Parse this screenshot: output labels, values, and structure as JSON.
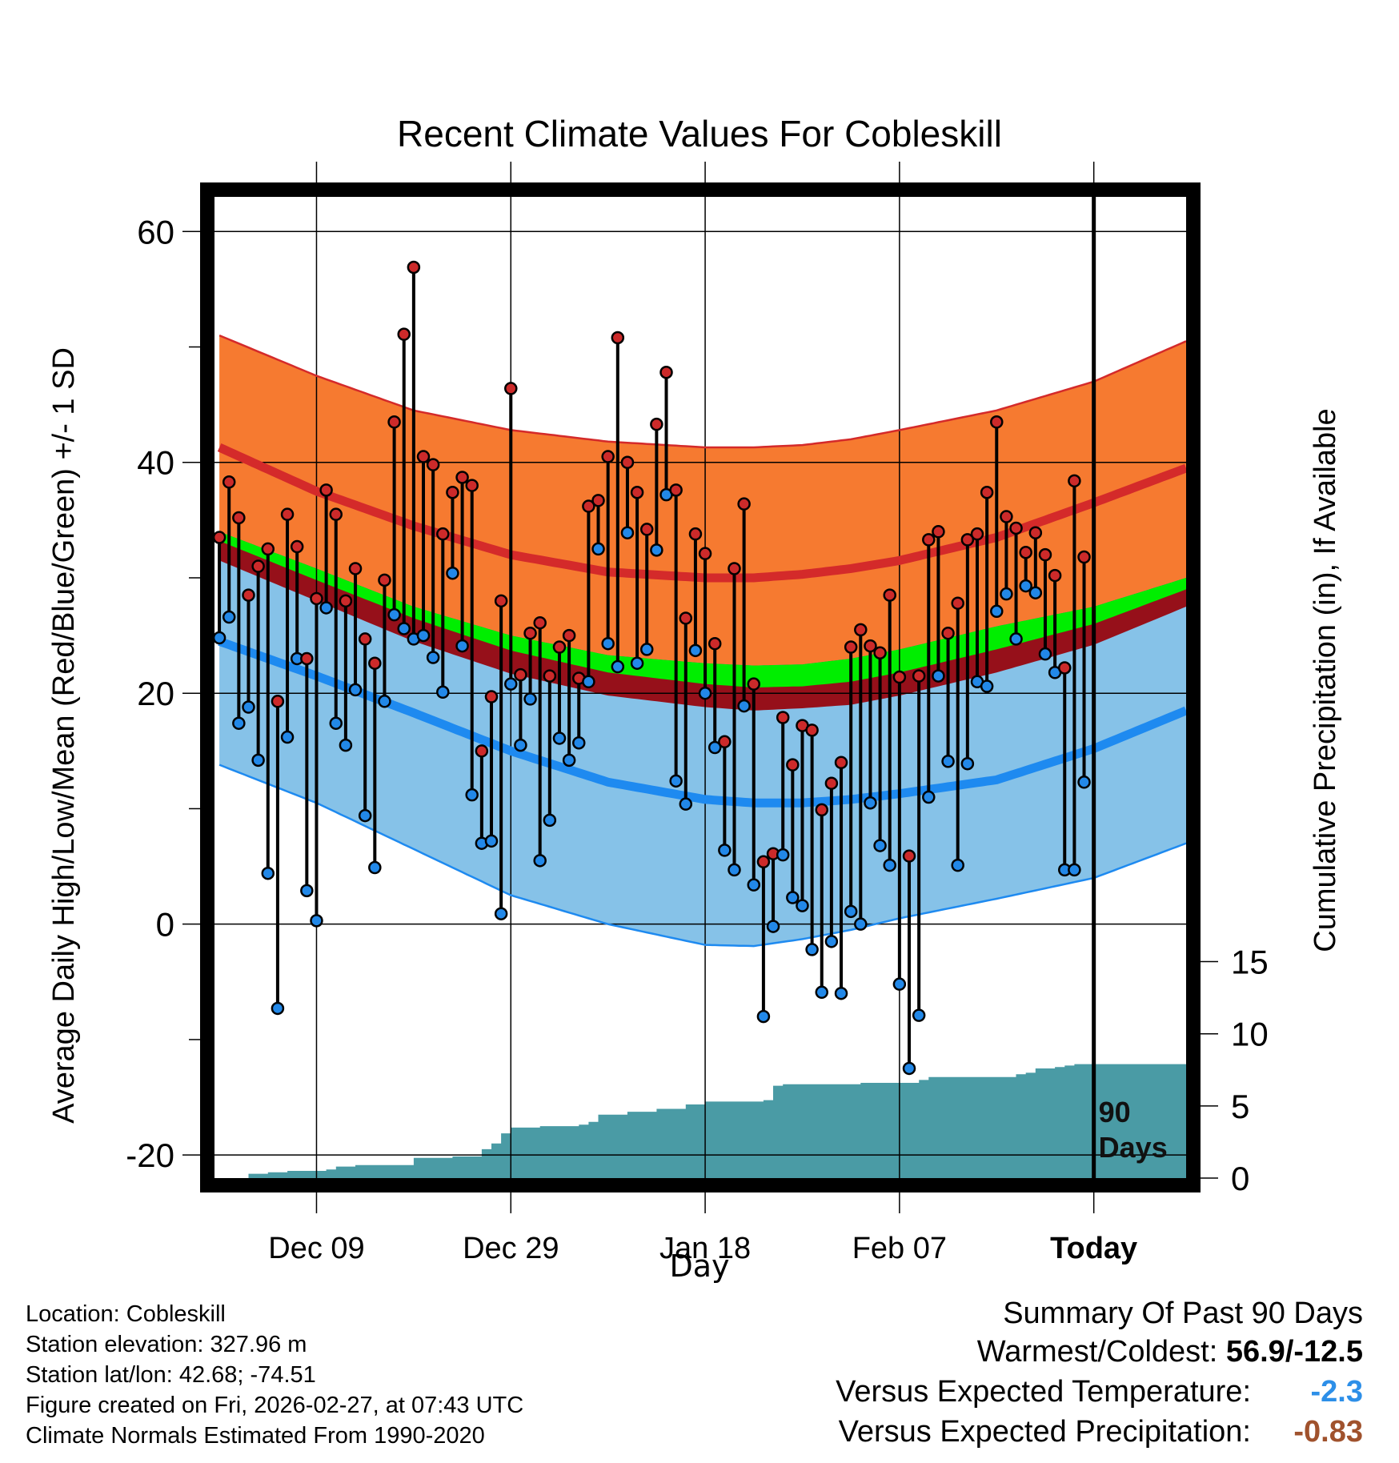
{
  "title": "Recent Climate Values For Cobleskill",
  "chart_data": {
    "type": "scatter",
    "title": "Recent Climate Values For Cobleskill",
    "xlabel": "Day",
    "ylabel_left": "Average Daily High/Low/Mean (Red/Blue/Green) +/- 1 SD",
    "ylabel_right": "Cumulative Precipitation (in), If Available",
    "y_left_range": [
      -22,
      63
    ],
    "y_left_ticks": [
      "60",
      "40",
      "20",
      "0",
      "-20"
    ],
    "y_left_tick_values": [
      60,
      40,
      20,
      0,
      -20
    ],
    "y_right_range": [
      0,
      68
    ],
    "y_right_ticks": [
      "15",
      "10",
      "5",
      "0"
    ],
    "y_right_tick_values": [
      15,
      10,
      5,
      0
    ],
    "x_ticks": [
      "Dec 09",
      "Dec 29",
      "Jan 18",
      "Feb 07",
      "Today"
    ],
    "x_tick_days": [
      10,
      30,
      50,
      70,
      90
    ],
    "x_range": [
      -0.5,
      99.5
    ],
    "today_day": 90,
    "today_label": "90 Days",
    "normals_days": [
      0,
      10,
      20,
      30,
      40,
      50,
      55,
      60,
      65,
      70,
      80,
      90,
      99.5
    ],
    "normal_high": [
      41.3,
      37.5,
      34.5,
      32.0,
      30.5,
      30.0,
      30.0,
      30.3,
      30.8,
      31.5,
      33.5,
      36.5,
      39.5
    ],
    "normal_high_plus_sd": [
      51,
      47.5,
      44.5,
      42.8,
      41.8,
      41.3,
      41.3,
      41.5,
      42.0,
      42.8,
      44.5,
      47.0,
      50.5
    ],
    "normal_low": [
      24.5,
      21.5,
      18.3,
      15.0,
      12.3,
      10.8,
      10.5,
      10.5,
      10.8,
      11.3,
      12.5,
      15.2,
      18.5
    ],
    "normal_low_minus_sd": [
      13.8,
      10.5,
      6.5,
      2.5,
      0,
      -1.8,
      -1.9,
      -1.3,
      -0.5,
      0.5,
      2.2,
      4.0,
      7.0
    ],
    "normal_mean": [
      33.2,
      29.8,
      26.5,
      23.7,
      21.8,
      20.8,
      20.5,
      20.6,
      21.0,
      21.8,
      23.8,
      26.0,
      29.0
    ],
    "normal_mean_upper": [
      34.0,
      30.8,
      27.5,
      25.0,
      23.3,
      22.6,
      22.4,
      22.5,
      23.0,
      23.8,
      25.8,
      27.5,
      30.0
    ],
    "normal_mean_lower": [
      31.5,
      28.0,
      24.5,
      21.7,
      19.8,
      18.8,
      18.5,
      18.7,
      19.0,
      19.8,
      21.8,
      24.2,
      27.5
    ],
    "daily_days": [
      0,
      1,
      2,
      3,
      4,
      5,
      6,
      7,
      8,
      9,
      10,
      11,
      12,
      13,
      14,
      15,
      16,
      17,
      18,
      19,
      20,
      21,
      22,
      23,
      24,
      25,
      26,
      27,
      28,
      29,
      30,
      31,
      32,
      33,
      34,
      35,
      36,
      37,
      38,
      39,
      40,
      41,
      42,
      43,
      44,
      45,
      46,
      47,
      48,
      49,
      50,
      51,
      52,
      53,
      54,
      55,
      56,
      57,
      58,
      59,
      60,
      61,
      62,
      63,
      64,
      65,
      66,
      67,
      68,
      69,
      70,
      71,
      72,
      73,
      74,
      75,
      76,
      77,
      78,
      79,
      80,
      81,
      82,
      83,
      84,
      85,
      86,
      87,
      88,
      89,
      90
    ],
    "daily_high": [
      33.5,
      38.3,
      35.2,
      28.5,
      31.0,
      32.5,
      19.3,
      35.5,
      32.7,
      23.0,
      28.2,
      37.6,
      35.5,
      28.0,
      30.8,
      24.7,
      22.6,
      29.8,
      43.5,
      51.1,
      56.9,
      40.5,
      39.8,
      33.8,
      37.4,
      38.7,
      38.0,
      15.0,
      19.7,
      28.0,
      46.4,
      21.6,
      25.2,
      26.1,
      21.5,
      24.0,
      25.0,
      21.3,
      36.2,
      36.7,
      40.5,
      50.8,
      40.0,
      37.4,
      34.2,
      43.3,
      47.8,
      37.6,
      26.5,
      33.8,
      32.1,
      24.3,
      15.8,
      30.8,
      36.4,
      20.8,
      5.4,
      6.1,
      17.9,
      13.8,
      17.2,
      16.8,
      9.9,
      12.2,
      14.0,
      24.0,
      25.5,
      24.1,
      23.5,
      28.5,
      21.4,
      5.9,
      21.5,
      33.3,
      34.0,
      25.2,
      27.8,
      33.3,
      33.8,
      37.4,
      43.5,
      35.3,
      34.3,
      32.2,
      33.9,
      32.0,
      30.2,
      22.2,
      38.4,
      31.8,
      null
    ],
    "daily_low": [
      24.8,
      26.6,
      17.4,
      18.8,
      14.2,
      4.4,
      -7.3,
      16.2,
      23.0,
      2.9,
      0.3,
      27.4,
      17.4,
      15.5,
      20.3,
      9.4,
      4.9,
      19.3,
      26.8,
      25.6,
      24.7,
      25.0,
      23.1,
      20.1,
      30.4,
      24.1,
      11.2,
      7.0,
      7.2,
      0.9,
      20.8,
      15.5,
      19.5,
      5.5,
      9.0,
      16.1,
      14.2,
      15.7,
      21.0,
      32.5,
      24.3,
      22.3,
      33.9,
      22.6,
      23.8,
      32.4,
      37.2,
      12.4,
      10.4,
      23.7,
      20.0,
      15.3,
      6.4,
      4.7,
      18.9,
      3.4,
      -8.0,
      -0.2,
      6.0,
      2.3,
      1.6,
      -2.2,
      -5.9,
      -1.5,
      -6.0,
      1.1,
      0.0,
      10.5,
      6.8,
      5.1,
      -5.2,
      -12.5,
      -7.9,
      11.0,
      21.5,
      14.1,
      5.1,
      13.9,
      21.0,
      20.6,
      27.1,
      28.6,
      24.7,
      29.3,
      28.7,
      23.4,
      21.8,
      4.7,
      4.7,
      12.3,
      null
    ],
    "precip_days": [
      3,
      5,
      7,
      10,
      11,
      12,
      14,
      19,
      20,
      24,
      27,
      28,
      29,
      30,
      31,
      33,
      35,
      37,
      38,
      39,
      40,
      42,
      44,
      45,
      46,
      47,
      48,
      49,
      50,
      52,
      54,
      55,
      56,
      57,
      58,
      59,
      62,
      66,
      70,
      72,
      73,
      76,
      80,
      81,
      82,
      83,
      84,
      85,
      86,
      87,
      88,
      90,
      99.5
    ],
    "cumulative_precip": [
      0.3,
      0.4,
      0.5,
      0.5,
      0.6,
      0.8,
      0.9,
      0.9,
      1.4,
      1.5,
      2.0,
      2.4,
      3.1,
      3.5,
      3.5,
      3.6,
      3.6,
      3.7,
      3.9,
      4.4,
      4.4,
      4.6,
      4.6,
      4.8,
      4.8,
      4.8,
      5.1,
      5.1,
      5.3,
      5.3,
      5.3,
      5.3,
      5.4,
      6.4,
      6.5,
      6.5,
      6.5,
      6.6,
      6.6,
      6.8,
      7.0,
      7.0,
      7.0,
      7.0,
      7.2,
      7.3,
      7.6,
      7.6,
      7.7,
      7.8,
      7.9,
      7.9,
      7.9
    ],
    "colors": {
      "high_band": "#f67a30",
      "high_line": "#d42a2a",
      "low_band": "#86c2e8",
      "low_line": "#1e8af0",
      "mean_band": "#00ee00",
      "overlap": "#96101a",
      "precip": "#4a9ba5",
      "high_marker": "#cc2a2a",
      "low_marker": "#2288e8"
    }
  },
  "footer": {
    "location": "Location: Cobleskill",
    "elevation": "Station elevation: 327.96 m",
    "latlon": "Station lat/lon: 42.68; -74.51",
    "created": "Figure created on Fri, 2026-02-27, at 07:43 UTC",
    "normals": "Climate Normals Estimated From 1990-2020"
  },
  "summary": {
    "heading": "Summary Of Past 90 Days",
    "warm_cold_label": "Warmest/Coldest:",
    "warm_cold_value": "56.9/-12.5",
    "temp_label": "Versus Expected Temperature:",
    "temp_value": "-2.3",
    "temp_color": "#2d8fe8",
    "precip_label": "Versus Expected Precipitation:",
    "precip_value": "-0.83",
    "precip_color": "#a0522d"
  }
}
